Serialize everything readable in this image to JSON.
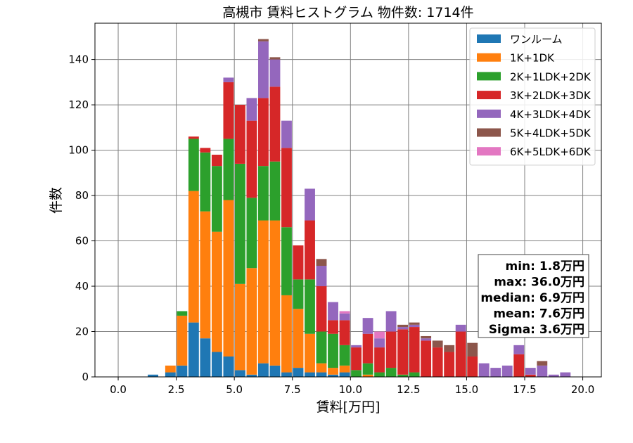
{
  "chart_data": {
    "type": "bar",
    "stacked": true,
    "title": "高槻市 賃料ヒストグラム  物件数: 1714件",
    "xlabel": "賃料[万円]",
    "ylabel": "件数",
    "xlim": [
      -1.0,
      20.8
    ],
    "ylim": [
      0,
      156
    ],
    "xticks": [
      0.0,
      2.5,
      5.0,
      7.5,
      10.0,
      12.5,
      15.0,
      17.5,
      20.0
    ],
    "xtick_labels": [
      "0.0",
      "2.5",
      "5.0",
      "7.5",
      "10.0",
      "12.5",
      "15.0",
      "17.5",
      "20.0"
    ],
    "yticks": [
      0,
      20,
      40,
      60,
      80,
      100,
      120,
      140
    ],
    "ytick_labels": [
      "0",
      "20",
      "40",
      "60",
      "80",
      "100",
      "120",
      "140"
    ],
    "grid": true,
    "legend_position": "top-right",
    "bin_width": 0.5,
    "x": [
      1.5,
      2.25,
      2.75,
      3.25,
      3.75,
      4.25,
      4.75,
      5.25,
      5.75,
      6.25,
      6.75,
      7.25,
      7.75,
      8.25,
      8.75,
      9.25,
      9.75,
      10.25,
      10.75,
      11.25,
      11.75,
      12.25,
      12.75,
      13.25,
      13.75,
      14.25,
      14.75,
      15.25,
      15.75,
      16.25,
      16.75,
      17.25,
      17.75,
      18.25,
      18.75,
      19.25
    ],
    "series": [
      {
        "name": "ワンルーム",
        "color": "#1f77b4",
        "values": [
          1,
          2,
          5,
          24,
          17,
          11,
          9,
          3,
          1,
          6,
          5,
          2,
          4,
          2,
          2,
          1,
          2,
          0,
          0,
          0,
          0,
          0,
          0,
          0,
          0,
          0,
          0,
          0,
          0,
          0,
          0,
          0,
          0,
          0,
          0,
          0
        ]
      },
      {
        "name": "1K+1DK",
        "color": "#ff7f0e",
        "values": [
          0,
          3,
          22,
          58,
          56,
          53,
          69,
          38,
          47,
          63,
          64,
          34,
          26,
          17,
          4,
          3,
          3,
          0,
          1,
          0,
          0,
          0,
          0,
          0,
          0,
          0,
          0,
          0,
          0,
          0,
          0,
          0,
          0,
          0,
          0,
          0
        ]
      },
      {
        "name": "2K+1LDK+2DK",
        "color": "#2ca02c",
        "values": [
          0,
          0,
          2,
          23,
          26,
          29,
          27,
          53,
          31,
          24,
          26,
          30,
          13,
          24,
          14,
          15,
          9,
          3,
          5,
          2,
          4,
          1,
          2,
          0,
          0,
          0,
          0,
          0,
          0,
          0,
          0,
          0,
          0,
          0,
          0,
          0
        ]
      },
      {
        "name": "3K+2LDK+3DK",
        "color": "#d62728",
        "values": [
          0,
          0,
          0,
          1,
          2,
          5,
          25,
          26,
          34,
          30,
          33,
          35,
          15,
          26,
          20,
          6,
          11,
          10,
          13,
          11,
          16,
          20,
          20,
          16,
          13,
          11,
          20,
          9,
          0,
          0,
          0,
          10,
          1,
          0,
          0,
          0
        ]
      },
      {
        "name": "4K+3LDK+4DK",
        "color": "#9467bd",
        "values": [
          0,
          0,
          0,
          0,
          0,
          0,
          2,
          0,
          10,
          25,
          12,
          12,
          0,
          14,
          9,
          8,
          3,
          1,
          7,
          4,
          9,
          1,
          1,
          1,
          0,
          0,
          3,
          0,
          6,
          4,
          5,
          4,
          3,
          5,
          1,
          2
        ]
      },
      {
        "name": "5K+4LDK+5DK",
        "color": "#8c564b",
        "values": [
          0,
          0,
          0,
          0,
          0,
          0,
          0,
          0,
          0,
          1,
          1,
          0,
          0,
          0,
          3,
          0,
          0,
          0,
          0,
          0,
          0,
          1,
          1,
          1,
          3,
          3,
          0,
          6,
          0,
          0,
          0,
          0,
          0,
          2,
          0,
          0
        ]
      },
      {
        "name": "6K+5LDK+6DK",
        "color": "#e377c2",
        "values": [
          0,
          0,
          0,
          0,
          0,
          0,
          0,
          0,
          0,
          0,
          0,
          0,
          0,
          0,
          0,
          0,
          1,
          0,
          0,
          3,
          0,
          0,
          0,
          0,
          0,
          0,
          0,
          0,
          0,
          0,
          0,
          0,
          0,
          0,
          0,
          0
        ]
      }
    ],
    "annotation": {
      "position": "right",
      "lines": [
        "min: 1.8万円",
        "max: 36.0万円",
        "median: 6.9万円",
        "mean: 7.6万円",
        "Sigma: 3.6万円"
      ]
    }
  }
}
